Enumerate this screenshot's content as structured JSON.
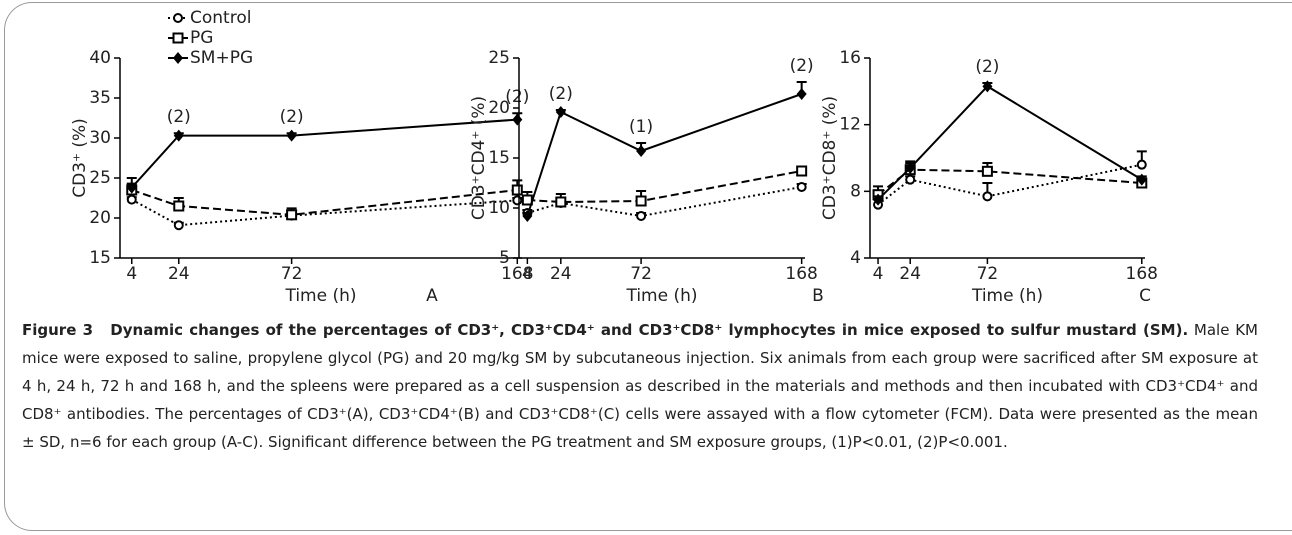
{
  "chart_data": [
    {
      "type": "line",
      "panel": "A",
      "ylabel": "CD3⁺ (%)",
      "xlabel": "Time (h)",
      "x": [
        4,
        24,
        72,
        168
      ],
      "xlim": [
        -1,
        170
      ],
      "xticks": [
        4,
        24,
        72,
        168
      ],
      "ylim": [
        15,
        40
      ],
      "yticks": [
        15,
        20,
        25,
        30,
        35,
        40
      ],
      "legend": "top-left",
      "series": [
        {
          "name": "Control",
          "color": "#000000",
          "marker": "circle",
          "dash": "dotted",
          "values": [
            22.3,
            19.1,
            20.3,
            22.2
          ],
          "errors": [
            0.3,
            0.3,
            0.4,
            0.3
          ]
        },
        {
          "name": "PG",
          "color": "#000000",
          "marker": "square",
          "dash": "dashed",
          "values": [
            23.5,
            21.5,
            20.4,
            23.5
          ],
          "errors": [
            1.5,
            1.0,
            0.8,
            1.2
          ]
        },
        {
          "name": "SM+PG",
          "color": "#000000",
          "marker": "diamond",
          "dash": "solid",
          "values": [
            23.8,
            30.3,
            30.3,
            32.3
          ],
          "errors": [
            0.5,
            0.3,
            0.3,
            0.8
          ]
        }
      ],
      "annotations": [
        {
          "x": 24,
          "text": "(2)"
        },
        {
          "x": 72,
          "text": "(2)"
        },
        {
          "x": 168,
          "text": "(2)"
        }
      ]
    },
    {
      "type": "line",
      "panel": "B",
      "ylabel": "CD3⁺CD4⁺ (%)",
      "xlabel": "Time (h)",
      "x": [
        4,
        24,
        72,
        168
      ],
      "xlim": [
        -1,
        170
      ],
      "xticks": [
        4,
        24,
        72,
        168
      ],
      "ylim": [
        5,
        25
      ],
      "yticks": [
        5,
        10,
        15,
        20,
        25
      ],
      "series": [
        {
          "color": "#000000",
          "marker": "circle",
          "dash": "dotted",
          "values": [
            9.5,
            10.5,
            9.2,
            12.1
          ],
          "errors": [
            0.3,
            0.3,
            0.3,
            0.3
          ]
        },
        {
          "color": "#000000",
          "marker": "square",
          "dash": "dashed",
          "values": [
            10.8,
            10.6,
            10.7,
            13.7
          ],
          "errors": [
            0.8,
            0.8,
            1.0,
            0.4
          ]
        },
        {
          "color": "#000000",
          "marker": "diamond",
          "dash": "solid",
          "values": [
            9.2,
            19.6,
            15.7,
            21.4
          ],
          "errors": [
            0.3,
            0.2,
            0.8,
            1.2
          ]
        }
      ],
      "annotations": [
        {
          "x": 24,
          "text": "(2)"
        },
        {
          "x": 72,
          "text": "(1)"
        },
        {
          "x": 168,
          "text": "(2)"
        }
      ]
    },
    {
      "type": "line",
      "panel": "C",
      "ylabel": "CD3⁺CD8⁺ (%)",
      "xlabel": "Time (h)",
      "x": [
        4,
        24,
        72,
        168
      ],
      "xlim": [
        -1,
        170
      ],
      "xticks": [
        4,
        24,
        72,
        168
      ],
      "ylim": [
        4,
        16
      ],
      "yticks": [
        4,
        8,
        12,
        16
      ],
      "series": [
        {
          "color": "#000000",
          "marker": "circle",
          "dash": "dotted",
          "values": [
            7.2,
            8.7,
            7.7,
            9.6
          ],
          "errors": [
            0.3,
            0.2,
            0.8,
            0.8
          ]
        },
        {
          "color": "#000000",
          "marker": "square",
          "dash": "dashed",
          "values": [
            7.8,
            9.3,
            9.2,
            8.5
          ],
          "errors": [
            0.5,
            0.5,
            0.5,
            0.2
          ]
        },
        {
          "color": "#000000",
          "marker": "diamond",
          "dash": "solid",
          "values": [
            7.5,
            9.4,
            14.3,
            8.7
          ],
          "errors": [
            0.2,
            0.3,
            0.2,
            0.2
          ]
        }
      ],
      "annotations": [
        {
          "x": 72,
          "text": "(2)"
        }
      ]
    }
  ],
  "caption": {
    "label": "Figure 3",
    "title": "Dynamic changes of the percentages of CD3⁺, CD3⁺CD4⁺ and CD3⁺CD8⁺ lymphocytes in mice exposed to sulfur mustard (SM).",
    "text": "Male KM mice were exposed to saline, propylene glycol (PG) and 20 mg/kg SM by subcutaneous injection. Six animals from each group were sacrificed after SM exposure at 4 h, 24 h, 72 h and 168 h, and the spleens were prepared as a cell suspension as described in the materials and methods and then incubated with CD3⁺CD4⁺ and CD8⁺ antibodies. The percentages of CD3⁺(A), CD3⁺CD4⁺(B) and CD3⁺CD8⁺(C) cells were assayed with a flow cytometer (FCM). Data were presented as the mean ± SD, n=6 for each group (A-C). Significant difference between the PG treatment and SM exposure groups, (1)P<0.01, (2)P<0.001."
  }
}
